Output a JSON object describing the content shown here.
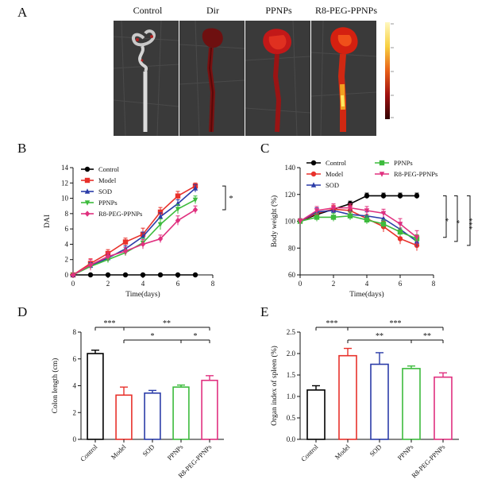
{
  "panel_a": {
    "letter": "A",
    "labels": [
      "Control",
      "Dir",
      "PPNPs",
      "R8-PEG-PPNPs"
    ]
  },
  "chart_data": [
    {
      "panel": "B",
      "type": "line",
      "xlabel": "Time(days)",
      "ylabel": "DAI",
      "xlim": [
        0,
        8
      ],
      "ylim": [
        0,
        14
      ],
      "xticks": [
        0,
        2,
        4,
        6,
        8
      ],
      "yticks": [
        0,
        2,
        4,
        6,
        8,
        10,
        12,
        14
      ],
      "legend_position": "top-left",
      "x": [
        0,
        1,
        2,
        3,
        4,
        5,
        6,
        7
      ],
      "series": [
        {
          "name": "Control",
          "color": "#000000",
          "marker": "circle",
          "values": [
            0,
            0,
            0,
            0,
            0,
            0,
            0,
            0
          ],
          "err": [
            0,
            0,
            0,
            0,
            0,
            0,
            0,
            0
          ]
        },
        {
          "name": "Model",
          "color": "#e8312b",
          "marker": "square",
          "values": [
            0,
            1.5,
            2.8,
            4.3,
            5.3,
            8.2,
            10.3,
            11.6
          ],
          "err": [
            0,
            0.6,
            0.5,
            0.5,
            0.8,
            0.6,
            0.6,
            0.4
          ]
        },
        {
          "name": "SOD",
          "color": "#2b3ca8",
          "marker": "triangle",
          "values": [
            0,
            1.2,
            2.2,
            3.4,
            5.0,
            7.6,
            9.3,
            11.3
          ],
          "err": [
            0,
            0.4,
            0.4,
            0.4,
            0.6,
            0.5,
            0.5,
            0.5
          ]
        },
        {
          "name": "PPNPs",
          "color": "#3dbb3d",
          "marker": "triangle-down",
          "values": [
            0,
            1.1,
            2.0,
            2.9,
            4.2,
            6.6,
            8.6,
            9.8
          ],
          "err": [
            0,
            0.4,
            0.4,
            0.4,
            0.6,
            0.7,
            0.6,
            0.5
          ]
        },
        {
          "name": "R8-PEG-PPNPs",
          "color": "#e0307f",
          "marker": "diamond",
          "values": [
            0,
            1.3,
            2.4,
            3.1,
            4.0,
            4.7,
            7.1,
            8.5
          ],
          "err": [
            0,
            0.7,
            0.5,
            0.5,
            0.6,
            0.5,
            0.6,
            0.5
          ]
        }
      ],
      "significance": [
        "*"
      ]
    },
    {
      "panel": "C",
      "type": "line",
      "xlabel": "Time(days)",
      "ylabel": "Body weight (%)",
      "xlim": [
        0,
        8
      ],
      "ylim": [
        60,
        140
      ],
      "xticks": [
        0,
        2,
        4,
        6,
        8
      ],
      "yticks": [
        60,
        80,
        100,
        120,
        140
      ],
      "legend_position": "top",
      "x": [
        0,
        1,
        2,
        3,
        4,
        5,
        6,
        7
      ],
      "series": [
        {
          "name": "Control",
          "color": "#000000",
          "marker": "circle",
          "values": [
            100,
            105,
            109,
            113,
            119,
            119,
            119,
            119
          ],
          "err": [
            1,
            2,
            2,
            2,
            2,
            2,
            2,
            2
          ]
        },
        {
          "name": "Model",
          "color": "#e8312b",
          "marker": "circle",
          "values": [
            100,
            106,
            109,
            108,
            102,
            96,
            87,
            82
          ],
          "err": [
            2,
            3,
            3,
            4,
            3,
            4,
            4,
            4
          ]
        },
        {
          "name": "SOD",
          "color": "#2b3ca8",
          "marker": "triangle",
          "values": [
            100,
            107,
            108,
            105,
            104,
            102,
            94,
            85
          ],
          "err": [
            2,
            3,
            3,
            3,
            3,
            4,
            4,
            4
          ]
        },
        {
          "name": "PPNPs",
          "color": "#3dbb3d",
          "marker": "square",
          "values": [
            100,
            103,
            103,
            104,
            101,
            98,
            92,
            87
          ],
          "err": [
            2,
            3,
            3,
            3,
            3,
            3,
            3,
            3
          ]
        },
        {
          "name": "R8-PEG-PPNPs",
          "color": "#e0307f",
          "marker": "triangle-down",
          "values": [
            100,
            108,
            110,
            110,
            108,
            106,
            98,
            88
          ],
          "err": [
            2,
            3,
            3,
            3,
            3,
            3,
            4,
            5
          ]
        }
      ],
      "significance": [
        "*",
        "*",
        "***"
      ]
    },
    {
      "panel": "D",
      "type": "bar",
      "ylabel": "Colon length (cm)",
      "ylim": [
        0,
        8
      ],
      "yticks": [
        0,
        2,
        4,
        6,
        8
      ],
      "categories": [
        "Control",
        "Model",
        "SOD",
        "PPNPs",
        "R8-PEG-PPNPs"
      ],
      "values": [
        6.4,
        3.3,
        3.45,
        3.9,
        4.4
      ],
      "err": [
        0.25,
        0.6,
        0.2,
        0.15,
        0.35
      ],
      "colors": [
        "#000000",
        "#e8312b",
        "#2b3ca8",
        "#3dbb3d",
        "#e0307f"
      ],
      "significance": [
        {
          "from": 0,
          "to": 4,
          "label": "***",
          "split_at": 1,
          "right_label": "**"
        },
        {
          "from": 1,
          "to": 4,
          "label": "*",
          "split_at": 3,
          "right_label": "*"
        }
      ]
    },
    {
      "panel": "E",
      "type": "bar",
      "ylabel": "Organ index of spleen (%)",
      "ylim": [
        0.0,
        2.5
      ],
      "yticks": [
        "0.0",
        "0.5",
        "1.0",
        "1.5",
        "2.0",
        "2.5"
      ],
      "categories": [
        "Control",
        "Model",
        "SOD",
        "PPNPs",
        "R8-PEG-PPNPs"
      ],
      "values": [
        1.15,
        1.95,
        1.75,
        1.65,
        1.45
      ],
      "err": [
        0.1,
        0.17,
        0.27,
        0.06,
        0.1
      ],
      "colors": [
        "#000000",
        "#e8312b",
        "#2b3ca8",
        "#3dbb3d",
        "#e0307f"
      ],
      "significance": [
        {
          "from": 0,
          "to": 4,
          "label": "***",
          "split_at": 1,
          "right_label": "***"
        },
        {
          "from": 1,
          "to": 4,
          "label": "**",
          "split_at": 3,
          "right_label": "**"
        }
      ]
    }
  ]
}
